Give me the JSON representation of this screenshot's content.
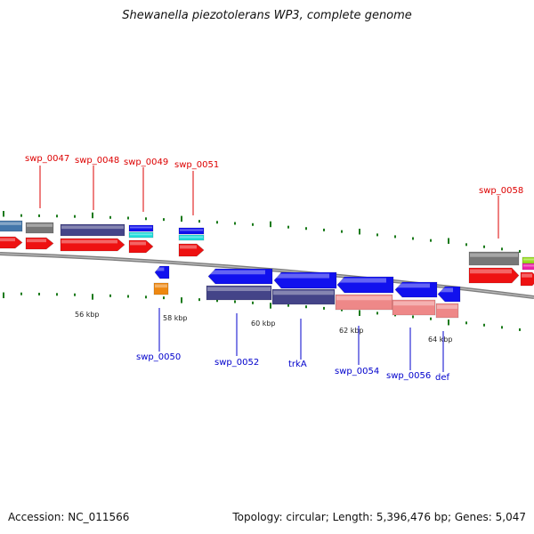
{
  "title": "Shewanella piezotolerans WP3, complete genome",
  "footer": {
    "accession": "Accession: NC_011566",
    "summary": "Topology: circular; Length: 5,396,476 bp; Genes: 5,047"
  },
  "colors": {
    "red_label": "#dd0000",
    "blue_label": "#0000cc",
    "tick": "#1a7a1a",
    "backbone": "#8a8a8a",
    "gene_red": "#ee1111",
    "gene_blue": "#1111ee",
    "gene_navy": "#444488",
    "gene_salmon": "#ee8888",
    "gene_gray": "#777777",
    "gene_cyan": "#22dddd",
    "gene_orange": "#ee8811",
    "gene_lightblue": "#4477aa",
    "gene_green": "#99dd22",
    "gene_magenta": "#ee22aa"
  },
  "scale_labels": [
    "56 kbp",
    "58 kbp",
    "60 kbp",
    "62 kbp",
    "64 kbp"
  ],
  "gene_labels_top": [
    "swp_0047",
    "swp_0048",
    "swp_0049",
    "swp_0051",
    "swp_0058"
  ],
  "gene_labels_bottom": [
    "swp_0050",
    "swp_0052",
    "trkA",
    "swp_0054",
    "swp_0056",
    "def"
  ]
}
